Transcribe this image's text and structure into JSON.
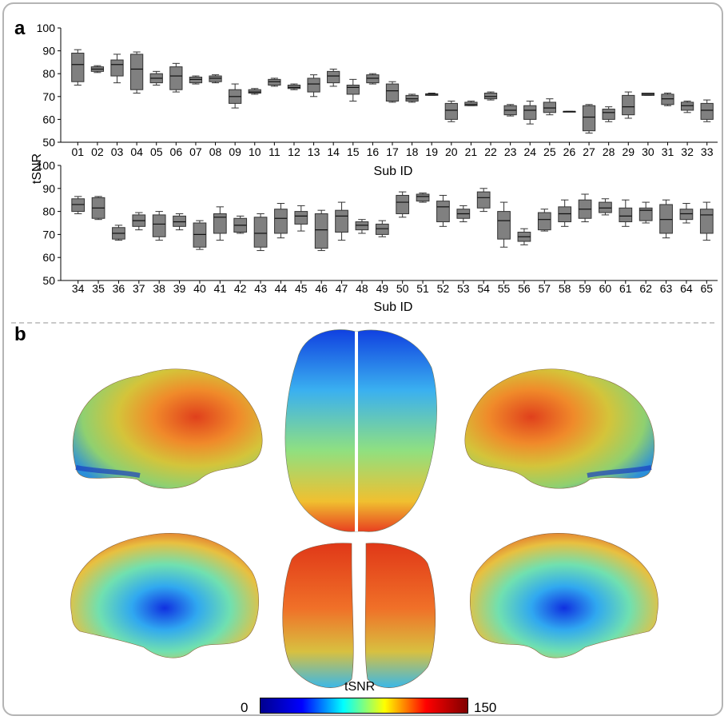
{
  "panels": {
    "a": "a",
    "b": "b"
  },
  "chart_data": [
    {
      "type": "box",
      "xlabel": "Sub ID",
      "ylabel": "tSNR",
      "ylim": [
        50,
        100
      ],
      "yticks": [
        50,
        60,
        70,
        80,
        90,
        100
      ],
      "categories": [
        "01",
        "02",
        "03",
        "04",
        "05",
        "06",
        "07",
        "08",
        "09",
        "10",
        "11",
        "12",
        "13",
        "14",
        "15",
        "16",
        "17",
        "18",
        "19",
        "20",
        "21",
        "22",
        "23",
        "24",
        "25",
        "26",
        "27",
        "28",
        "29",
        "30",
        "31",
        "32",
        "33"
      ],
      "boxes": [
        {
          "min": 75,
          "q1": 76.5,
          "median": 84,
          "q3": 89,
          "max": 90.5
        },
        {
          "min": 80.5,
          "q1": 81,
          "median": 82,
          "q3": 83,
          "max": 83.5
        },
        {
          "min": 76,
          "q1": 79,
          "median": 84,
          "q3": 86,
          "max": 88.5
        },
        {
          "min": 71.5,
          "q1": 73,
          "median": 82,
          "q3": 88.5,
          "max": 89.5
        },
        {
          "min": 75,
          "q1": 76,
          "median": 78,
          "q3": 80,
          "max": 81
        },
        {
          "min": 72,
          "q1": 73,
          "median": 79,
          "q3": 83,
          "max": 84.5
        },
        {
          "min": 75.5,
          "q1": 76,
          "median": 77.5,
          "q3": 78.5,
          "max": 79
        },
        {
          "min": 76,
          "q1": 76.5,
          "median": 78,
          "q3": 79,
          "max": 79.5
        },
        {
          "min": 65,
          "q1": 67,
          "median": 70,
          "q3": 73,
          "max": 75.5
        },
        {
          "min": 71,
          "q1": 71.5,
          "median": 72,
          "q3": 73,
          "max": 73.5
        },
        {
          "min": 74.5,
          "q1": 75,
          "median": 76.5,
          "q3": 77.5,
          "max": 78
        },
        {
          "min": 73,
          "q1": 73.5,
          "median": 74,
          "q3": 75,
          "max": 75.5
        },
        {
          "min": 70,
          "q1": 72,
          "median": 75.5,
          "q3": 78,
          "max": 79.5
        },
        {
          "min": 74.5,
          "q1": 76,
          "median": 79,
          "q3": 81,
          "max": 82
        },
        {
          "min": 68,
          "q1": 71,
          "median": 74,
          "q3": 75,
          "max": 77.5
        },
        {
          "min": 75.5,
          "q1": 76,
          "median": 78,
          "q3": 79.5,
          "max": 80
        },
        {
          "min": 67.5,
          "q1": 68,
          "median": 72.5,
          "q3": 75.5,
          "max": 76.5
        },
        {
          "min": 67.5,
          "q1": 68,
          "median": 69,
          "q3": 70.5,
          "max": 71
        },
        {
          "min": 70.5,
          "q1": 70.5,
          "median": 71,
          "q3": 71.2,
          "max": 71.5
        },
        {
          "min": 59,
          "q1": 60,
          "median": 64,
          "q3": 67,
          "max": 68
        },
        {
          "min": 66,
          "q1": 66,
          "median": 66.5,
          "q3": 67.5,
          "max": 68
        },
        {
          "min": 68.5,
          "q1": 69,
          "median": 70,
          "q3": 71.5,
          "max": 72
        },
        {
          "min": 61.5,
          "q1": 62,
          "median": 64,
          "q3": 66,
          "max": 66.5
        },
        {
          "min": 58,
          "q1": 60,
          "median": 64,
          "q3": 66,
          "max": 68
        },
        {
          "min": 62,
          "q1": 63,
          "median": 65,
          "q3": 67.5,
          "max": 69
        },
        {
          "min": 63.5,
          "q1": 63.5,
          "median": 63.5,
          "q3": 63.5,
          "max": 63.5
        },
        {
          "min": 54,
          "q1": 55,
          "median": 61,
          "q3": 66,
          "max": 66.5
        },
        {
          "min": 59,
          "q1": 60,
          "median": 63,
          "q3": 64.5,
          "max": 65.5
        },
        {
          "min": 60.5,
          "q1": 62,
          "median": 65.5,
          "q3": 70.5,
          "max": 72
        },
        {
          "min": 70.5,
          "q1": 70.5,
          "median": 71,
          "q3": 71.5,
          "max": 71.5
        },
        {
          "min": 66,
          "q1": 66.5,
          "median": 69,
          "q3": 71,
          "max": 71.5
        },
        {
          "min": 63,
          "q1": 64,
          "median": 66,
          "q3": 67.5,
          "max": 68
        },
        {
          "min": 59,
          "q1": 60,
          "median": 64,
          "q3": 67,
          "max": 68.5
        }
      ]
    },
    {
      "type": "box",
      "xlabel": "Sub ID",
      "ylabel": "tSNR",
      "ylim": [
        50,
        100
      ],
      "yticks": [
        50,
        60,
        70,
        80,
        90,
        100
      ],
      "categories": [
        "34",
        "35",
        "36",
        "37",
        "38",
        "39",
        "40",
        "41",
        "42",
        "43",
        "44",
        "45",
        "46",
        "47",
        "48",
        "49",
        "50",
        "51",
        "52",
        "53",
        "54",
        "55",
        "56",
        "57",
        "58",
        "59",
        "60",
        "61",
        "62",
        "63",
        "64",
        "65"
      ],
      "boxes": [
        {
          "min": 79,
          "q1": 80,
          "median": 83,
          "q3": 85.5,
          "max": 86.5
        },
        {
          "min": 76.5,
          "q1": 77,
          "median": 81.5,
          "q3": 86,
          "max": 86.5
        },
        {
          "min": 67.5,
          "q1": 68,
          "median": 70.5,
          "q3": 73,
          "max": 74
        },
        {
          "min": 72,
          "q1": 73.5,
          "median": 76,
          "q3": 78.5,
          "max": 79.5
        },
        {
          "min": 67.5,
          "q1": 69,
          "median": 74.5,
          "q3": 78.5,
          "max": 80
        },
        {
          "min": 72,
          "q1": 73.5,
          "median": 75.5,
          "q3": 78,
          "max": 79
        },
        {
          "min": 63.5,
          "q1": 64.5,
          "median": 70,
          "q3": 75,
          "max": 76
        },
        {
          "min": 67.5,
          "q1": 70.5,
          "median": 77.5,
          "q3": 79,
          "max": 82
        },
        {
          "min": 70.5,
          "q1": 71,
          "median": 74,
          "q3": 77,
          "max": 78
        },
        {
          "min": 63,
          "q1": 64.5,
          "median": 70.5,
          "q3": 77.5,
          "max": 79
        },
        {
          "min": 68.5,
          "q1": 70.5,
          "median": 77,
          "q3": 81,
          "max": 83.5
        },
        {
          "min": 71.5,
          "q1": 74.5,
          "median": 78,
          "q3": 80,
          "max": 82.5
        },
        {
          "min": 63,
          "q1": 64,
          "median": 72,
          "q3": 79,
          "max": 80.5
        },
        {
          "min": 67.5,
          "q1": 71,
          "median": 78,
          "q3": 80.5,
          "max": 84
        },
        {
          "min": 70.5,
          "q1": 72,
          "median": 74,
          "q3": 75.5,
          "max": 76.5
        },
        {
          "min": 69,
          "q1": 70,
          "median": 72.5,
          "q3": 74.5,
          "max": 76
        },
        {
          "min": 77.5,
          "q1": 79,
          "median": 84,
          "q3": 87,
          "max": 88.5
        },
        {
          "min": 84,
          "q1": 84.5,
          "median": 86.5,
          "q3": 87.5,
          "max": 88
        },
        {
          "min": 73.5,
          "q1": 75.5,
          "median": 82,
          "q3": 84.5,
          "max": 87
        },
        {
          "min": 75.5,
          "q1": 77,
          "median": 79,
          "q3": 81,
          "max": 82.5
        },
        {
          "min": 80,
          "q1": 81.5,
          "median": 86,
          "q3": 88.5,
          "max": 90
        },
        {
          "min": 64.5,
          "q1": 68,
          "median": 76,
          "q3": 80,
          "max": 84
        },
        {
          "min": 65.5,
          "q1": 67,
          "median": 69,
          "q3": 71,
          "max": 72.5
        },
        {
          "min": 71.5,
          "q1": 72,
          "median": 76.5,
          "q3": 79.5,
          "max": 81
        },
        {
          "min": 73.5,
          "q1": 75.5,
          "median": 79,
          "q3": 82,
          "max": 85
        },
        {
          "min": 75.5,
          "q1": 77,
          "median": 81,
          "q3": 85,
          "max": 87.5
        },
        {
          "min": 78.5,
          "q1": 79.5,
          "median": 81.5,
          "q3": 84,
          "max": 85.5
        },
        {
          "min": 73.5,
          "q1": 75.5,
          "median": 78,
          "q3": 81.5,
          "max": 85
        },
        {
          "min": 75,
          "q1": 76,
          "median": 80.5,
          "q3": 81.5,
          "max": 84
        },
        {
          "min": 68.5,
          "q1": 70.5,
          "median": 76.5,
          "q3": 83,
          "max": 85
        },
        {
          "min": 75,
          "q1": 76.5,
          "median": 79,
          "q3": 81,
          "max": 83.5
        },
        {
          "min": 67.5,
          "q1": 70.5,
          "median": 78.5,
          "q3": 81,
          "max": 84
        }
      ]
    }
  ],
  "colorbar": {
    "title": "tSNR",
    "min_label": "0",
    "max_label": "150",
    "colors": [
      "#00008f",
      "#0000ff",
      "#00ffff",
      "#ffff00",
      "#ff0000",
      "#800000"
    ]
  },
  "brain_views": [
    "lateral-left",
    "dorsal",
    "lateral-right",
    "medial-left",
    "posterior",
    "medial-right"
  ]
}
